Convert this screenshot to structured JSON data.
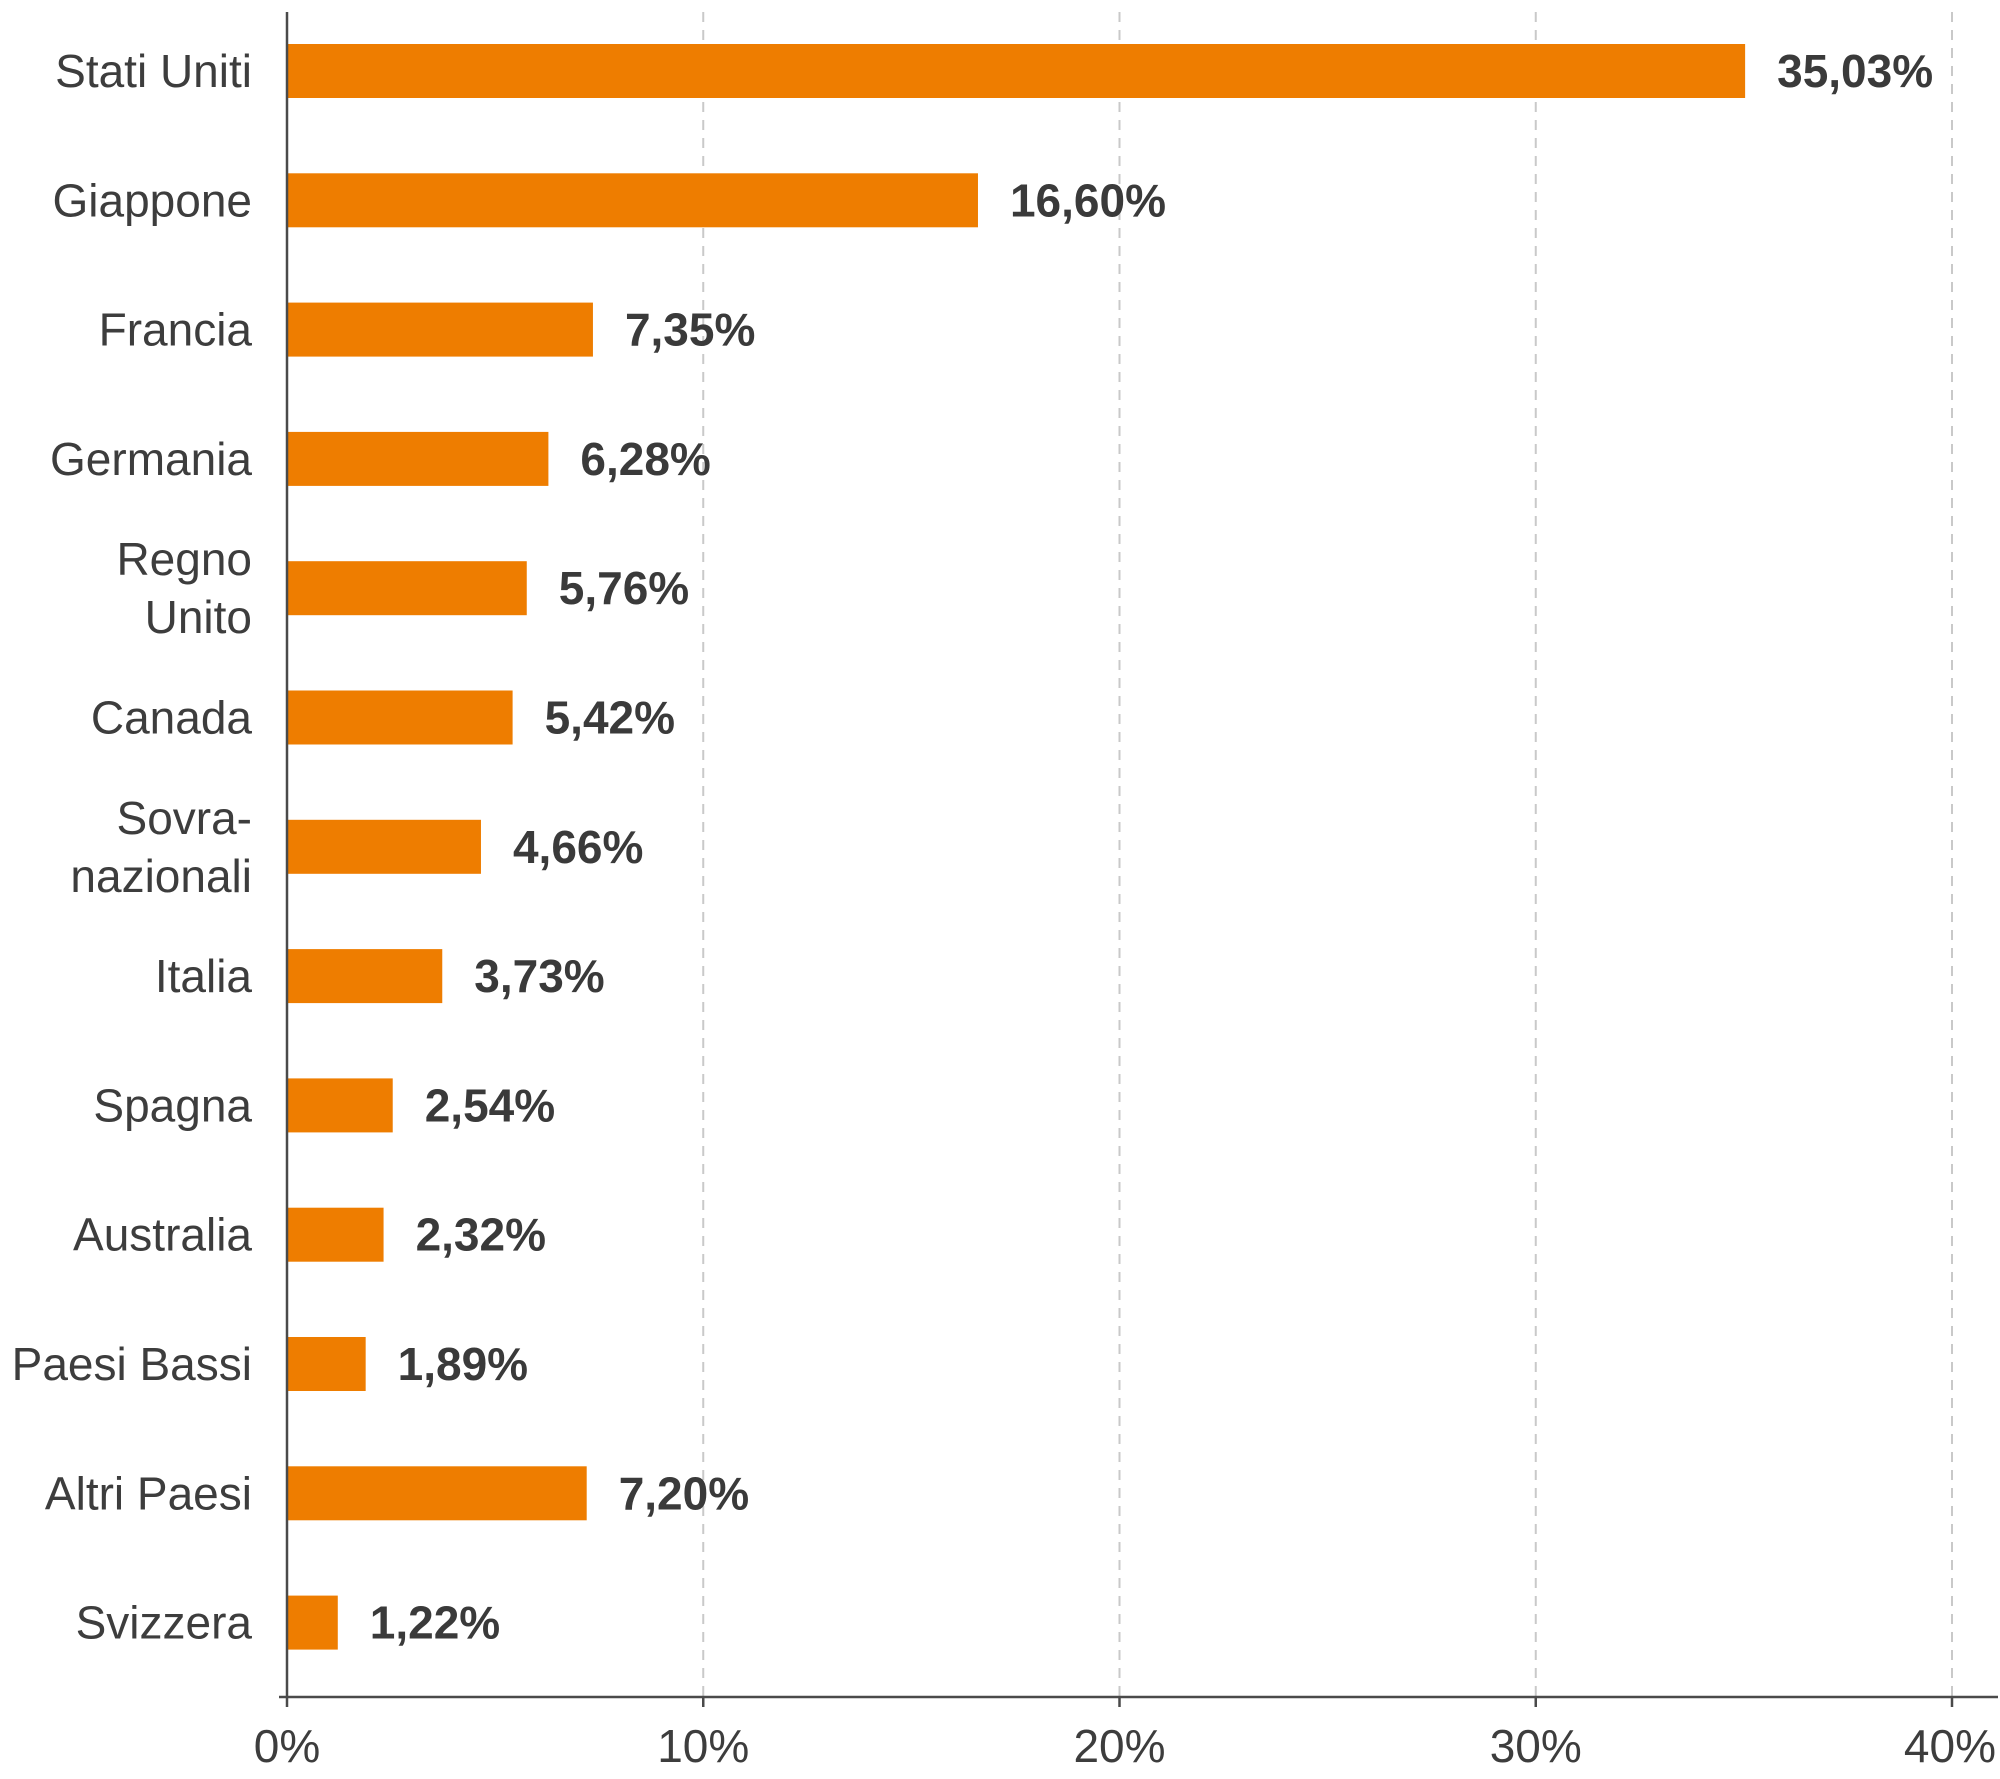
{
  "chart_data": {
    "type": "bar",
    "orientation": "horizontal",
    "categories": [
      [
        "Stati Uniti"
      ],
      [
        "Giappone"
      ],
      [
        "Francia"
      ],
      [
        "Germania"
      ],
      [
        "Regno",
        "Unito"
      ],
      [
        "Canada"
      ],
      [
        "Sovra-",
        "nazionali"
      ],
      [
        "Italia"
      ],
      [
        "Spagna"
      ],
      [
        "Australia"
      ],
      [
        "Paesi Bassi"
      ],
      [
        "Altri Paesi"
      ],
      [
        "Svizzera"
      ]
    ],
    "values": [
      35.03,
      16.6,
      7.35,
      6.28,
      5.76,
      5.42,
      4.66,
      3.73,
      2.54,
      2.32,
      1.89,
      7.2,
      1.22
    ],
    "value_labels": [
      "35,03%",
      "16,60%",
      "7,35%",
      "6,28%",
      "5,76%",
      "5,42%",
      "4,66%",
      "3,73%",
      "2,54%",
      "2,32%",
      "1,89%",
      "7,20%",
      "1,22%"
    ],
    "x_ticks": [
      0,
      10,
      20,
      30,
      40
    ],
    "x_tick_labels": [
      "0%",
      "10%",
      "20%",
      "30%",
      "40%"
    ],
    "xlim": [
      0,
      40
    ],
    "grid": "vertical dashed",
    "bar_color": "#ee7d00",
    "title": "",
    "xlabel": "",
    "ylabel": ""
  }
}
